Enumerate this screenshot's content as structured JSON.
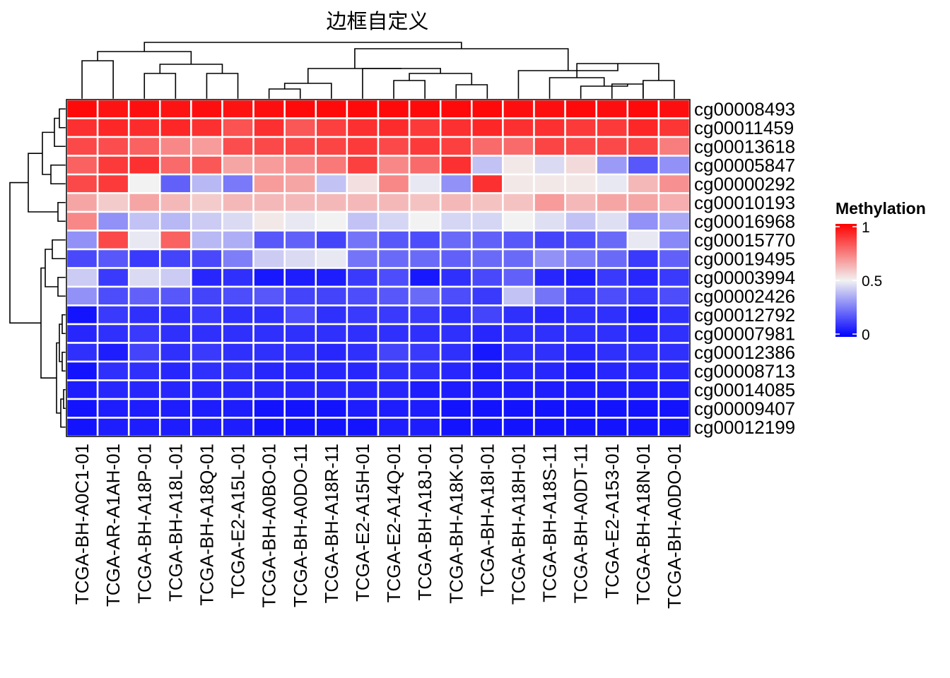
{
  "chart_data": {
    "type": "heatmap",
    "title": "边框自定义",
    "legend": {
      "title": "Methylation",
      "ticks": [
        "1",
        "0.5",
        "0"
      ],
      "tick_values": [
        1,
        0.5,
        0
      ],
      "range": [
        0,
        1
      ],
      "colors": {
        "low": "#0000ff",
        "mid": "#f2f2f2",
        "high": "#ff0000"
      },
      "position": "right"
    },
    "cell_border_color": "#ffffff",
    "panel_border_color": "#000000",
    "rows": [
      "cg00008493",
      "cg00011459",
      "cg00013618",
      "cg00005847",
      "cg00000292",
      "cg00010193",
      "cg00016968",
      "cg00015770",
      "cg00019495",
      "cg00003994",
      "cg00002426",
      "cg00012792",
      "cg00007981",
      "cg00012386",
      "cg00008713",
      "cg00014085",
      "cg00009407",
      "cg00012199"
    ],
    "columns": [
      "TCGA-BH-A0C1-01",
      "TCGA-AR-A1AH-01",
      "TCGA-BH-A18P-01",
      "TCGA-BH-A18L-01",
      "TCGA-BH-A18Q-01",
      "TCGA-E2-A15L-01",
      "TCGA-BH-A0BO-01",
      "TCGA-BH-A0DO-11",
      "TCGA-BH-A18R-11",
      "TCGA-E2-A15H-01",
      "TCGA-E2-A14Q-01",
      "TCGA-BH-A18J-01",
      "TCGA-BH-A18K-01",
      "TCGA-BH-A18I-01",
      "TCGA-BH-A18H-01",
      "TCGA-BH-A18S-11",
      "TCGA-BH-A0DT-11",
      "TCGA-E2-A153-01",
      "TCGA-BH-A18N-01",
      "TCGA-BH-A0DO-01"
    ],
    "values": [
      [
        0.98,
        0.96,
        0.97,
        0.96,
        0.97,
        0.96,
        0.97,
        0.98,
        0.98,
        0.98,
        0.98,
        0.98,
        0.98,
        0.98,
        0.97,
        0.97,
        0.98,
        0.97,
        0.98,
        0.97
      ],
      [
        0.9,
        0.92,
        0.91,
        0.92,
        0.9,
        0.83,
        0.9,
        0.82,
        0.87,
        0.9,
        0.91,
        0.88,
        0.9,
        0.92,
        0.9,
        0.9,
        0.88,
        0.88,
        0.92,
        0.89
      ],
      [
        0.85,
        0.84,
        0.8,
        0.72,
        0.68,
        0.84,
        0.85,
        0.85,
        0.86,
        0.88,
        0.85,
        0.88,
        0.87,
        0.78,
        0.78,
        0.86,
        0.85,
        0.85,
        0.86,
        0.74
      ],
      [
        0.8,
        0.88,
        0.9,
        0.78,
        0.82,
        0.66,
        0.68,
        0.7,
        0.75,
        0.87,
        0.72,
        0.78,
        0.9,
        0.4,
        0.52,
        0.45,
        0.55,
        0.32,
        0.18,
        0.3
      ],
      [
        0.85,
        0.88,
        0.5,
        0.2,
        0.38,
        0.25,
        0.68,
        0.66,
        0.4,
        0.54,
        0.72,
        0.48,
        0.3,
        0.9,
        0.52,
        0.52,
        0.52,
        0.48,
        0.62,
        0.7
      ],
      [
        0.66,
        0.58,
        0.66,
        0.62,
        0.58,
        0.62,
        0.62,
        0.62,
        0.62,
        0.62,
        0.62,
        0.6,
        0.62,
        0.6,
        0.6,
        0.68,
        0.62,
        0.66,
        0.66,
        0.64
      ],
      [
        0.72,
        0.3,
        0.4,
        0.38,
        0.42,
        0.45,
        0.52,
        0.48,
        0.5,
        0.4,
        0.44,
        0.5,
        0.44,
        0.44,
        0.5,
        0.46,
        0.4,
        0.46,
        0.3,
        0.35
      ],
      [
        0.3,
        0.85,
        0.48,
        0.8,
        0.38,
        0.36,
        0.18,
        0.2,
        0.14,
        0.24,
        0.18,
        0.16,
        0.22,
        0.2,
        0.18,
        0.14,
        0.16,
        0.22,
        0.48,
        0.28
      ],
      [
        0.15,
        0.18,
        0.12,
        0.14,
        0.15,
        0.26,
        0.42,
        0.45,
        0.48,
        0.24,
        0.22,
        0.22,
        0.2,
        0.22,
        0.22,
        0.3,
        0.26,
        0.22,
        0.12,
        0.2
      ],
      [
        0.42,
        0.12,
        0.45,
        0.42,
        0.08,
        0.1,
        0.05,
        0.06,
        0.06,
        0.12,
        0.16,
        0.05,
        0.1,
        0.15,
        0.2,
        0.08,
        0.06,
        0.12,
        0.08,
        0.12
      ],
      [
        0.3,
        0.16,
        0.2,
        0.18,
        0.14,
        0.16,
        0.18,
        0.14,
        0.14,
        0.16,
        0.18,
        0.22,
        0.16,
        0.12,
        0.4,
        0.24,
        0.12,
        0.16,
        0.12,
        0.16
      ],
      [
        0.04,
        0.12,
        0.1,
        0.1,
        0.12,
        0.1,
        0.1,
        0.16,
        0.1,
        0.12,
        0.12,
        0.12,
        0.1,
        0.14,
        0.1,
        0.08,
        0.1,
        0.1,
        0.06,
        0.1
      ],
      [
        0.08,
        0.1,
        0.12,
        0.1,
        0.1,
        0.1,
        0.1,
        0.1,
        0.1,
        0.1,
        0.1,
        0.1,
        0.1,
        0.08,
        0.1,
        0.1,
        0.1,
        0.1,
        0.08,
        0.1
      ],
      [
        0.1,
        0.06,
        0.14,
        0.1,
        0.12,
        0.1,
        0.1,
        0.1,
        0.08,
        0.1,
        0.14,
        0.12,
        0.1,
        0.05,
        0.1,
        0.1,
        0.08,
        0.1,
        0.1,
        0.1
      ],
      [
        0.04,
        0.1,
        0.1,
        0.08,
        0.1,
        0.1,
        0.08,
        0.08,
        0.08,
        0.08,
        0.1,
        0.1,
        0.08,
        0.06,
        0.08,
        0.08,
        0.06,
        0.08,
        0.08,
        0.08
      ],
      [
        0.06,
        0.08,
        0.08,
        0.08,
        0.08,
        0.08,
        0.08,
        0.08,
        0.08,
        0.08,
        0.08,
        0.06,
        0.06,
        0.06,
        0.06,
        0.06,
        0.06,
        0.06,
        0.06,
        0.06
      ],
      [
        0.04,
        0.06,
        0.06,
        0.06,
        0.06,
        0.06,
        0.04,
        0.04,
        0.04,
        0.06,
        0.06,
        0.06,
        0.04,
        0.04,
        0.04,
        0.04,
        0.04,
        0.04,
        0.04,
        0.04
      ],
      [
        0.04,
        0.06,
        0.06,
        0.06,
        0.06,
        0.06,
        0.04,
        0.04,
        0.04,
        0.04,
        0.06,
        0.06,
        0.04,
        0.04,
        0.04,
        0.04,
        0.04,
        0.04,
        0.04,
        0.04
      ]
    ]
  }
}
